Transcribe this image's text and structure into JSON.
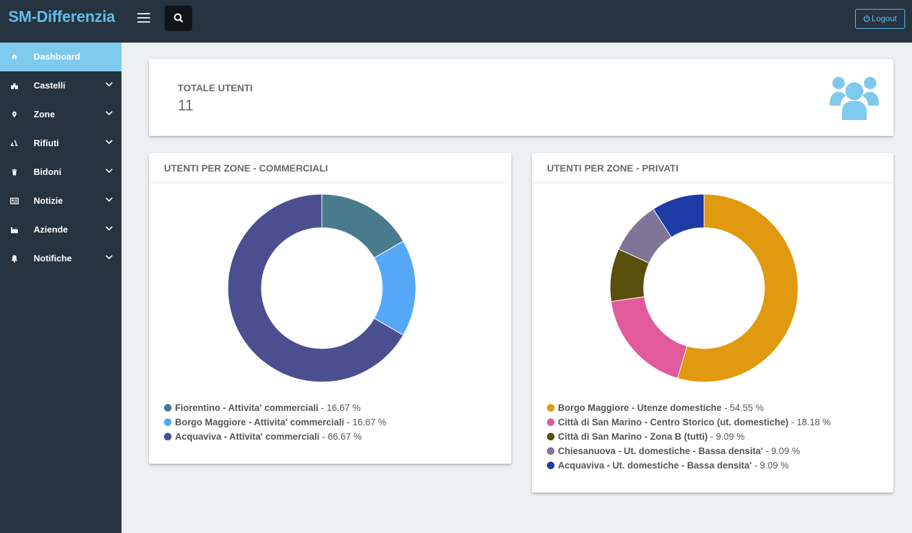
{
  "header": {
    "brand": "SM-Differenzia",
    "logout_label": "Logout"
  },
  "sidebar": {
    "items": [
      {
        "label": "Dashboard",
        "icon": "home-icon",
        "active": true
      },
      {
        "label": "Castelli",
        "icon": "castle-icon"
      },
      {
        "label": "Zone",
        "icon": "map-pin-icon"
      },
      {
        "label": "Rifiuti",
        "icon": "recycle-icon"
      },
      {
        "label": "Bidoni",
        "icon": "trash-icon"
      },
      {
        "label": "Notizie",
        "icon": "newspaper-icon"
      },
      {
        "label": "Aziende",
        "icon": "industry-icon"
      },
      {
        "label": "Notifiche",
        "icon": "bell-icon"
      }
    ]
  },
  "total": {
    "label": "TOTALE UTENTI",
    "value": "11"
  },
  "colors": {
    "accent": "#5fbcea",
    "sidebar_bg": "#263340",
    "active_bg": "#7fc9ee"
  },
  "chart_data": [
    {
      "type": "pie",
      "title": "UTENTI PER ZONE - COMMERCIALI",
      "slices": [
        {
          "name": "Fiorentino - Attivita' commerciali",
          "value": 16.67,
          "pct_label": " - 16.67 %",
          "color": "#4a7a8e"
        },
        {
          "name": "Borgo Maggiore - Attivita' commerciali",
          "value": 16.67,
          "pct_label": " - 16.67 %",
          "color": "#55a8f8"
        },
        {
          "name": "Acquaviva - Attivita' commerciali",
          "value": 66.67,
          "pct_label": " - 66.67 %",
          "color": "#4b4e8f"
        }
      ]
    },
    {
      "type": "pie",
      "title": "UTENTI PER ZONE - PRIVATI",
      "slices": [
        {
          "name": "Borgo Maggiore - Utenze domestiche",
          "value": 54.55,
          "pct_label": " - 54.55 %",
          "color": "#e19a0f"
        },
        {
          "name": "Città di San Marino - Centro Storico (ut. domestiche)",
          "value": 18.18,
          "pct_label": " - 18.18 %",
          "color": "#e15a9b"
        },
        {
          "name": "Città di San Marino - Zona B (tutti)",
          "value": 9.09,
          "pct_label": " - 9.09 %",
          "color": "#5a4f0d"
        },
        {
          "name": "Chiesanuova - Ut. domestiche - Bassa densita'",
          "value": 9.09,
          "pct_label": " - 9.09 %",
          "color": "#7e7597"
        },
        {
          "name": "Acquaviva - Ut. domestiche - Bassa densita'",
          "value": 9.09,
          "pct_label": " - 9.09 %",
          "color": "#1f3ba5"
        }
      ]
    }
  ]
}
